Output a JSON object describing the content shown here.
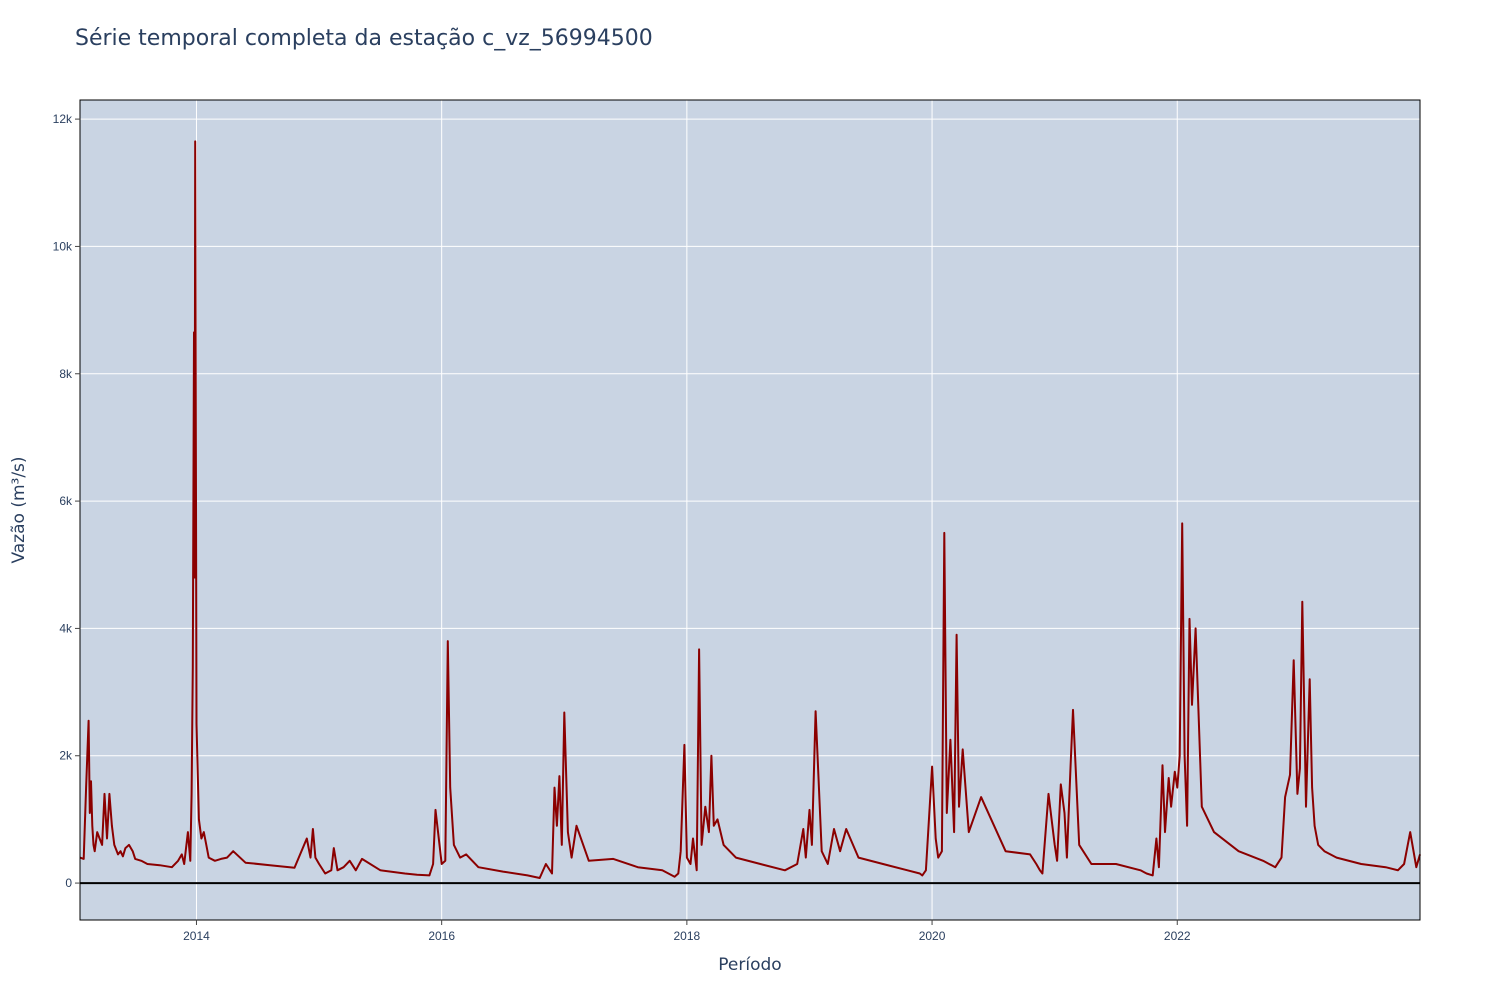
{
  "chart_data": {
    "type": "line",
    "title": "Série temporal completa da estação c_vz_56994500",
    "xlabel": "Período",
    "ylabel": "Vazão (m³/s)",
    "xlim": [
      2013.05,
      2023.98
    ],
    "ylim": [
      -580,
      12300
    ],
    "x_ticks": [
      {
        "value": 2014,
        "label": "2014"
      },
      {
        "value": 2016,
        "label": "2016"
      },
      {
        "value": 2018,
        "label": "2018"
      },
      {
        "value": 2020,
        "label": "2020"
      },
      {
        "value": 2022,
        "label": "2022"
      }
    ],
    "y_ticks": [
      {
        "value": 0,
        "label": "0"
      },
      {
        "value": 2000,
        "label": "2k"
      },
      {
        "value": 4000,
        "label": "4k"
      },
      {
        "value": 6000,
        "label": "6k"
      },
      {
        "value": 8000,
        "label": "8k"
      },
      {
        "value": 10000,
        "label": "10k"
      },
      {
        "value": 12000,
        "label": "12k"
      }
    ],
    "grid": true,
    "zero_line": true,
    "colors": {
      "plot_bg": "#c9d4e3",
      "grid": "#ffffff",
      "line": "#8b0000",
      "zero_line": "#000000"
    },
    "series": [
      {
        "x": [
          2013.05,
          2013.08,
          2013.1,
          2013.12,
          2013.13,
          2013.14,
          2013.15,
          2013.16,
          2013.17,
          2013.19,
          2013.21,
          2013.23,
          2013.25,
          2013.27,
          2013.29,
          2013.31,
          2013.33,
          2013.35,
          2013.36,
          2013.38,
          2013.4,
          2013.42,
          2013.45,
          2013.48,
          2013.5,
          2013.55,
          2013.6,
          2013.7,
          2013.8,
          2013.85,
          2013.88,
          2013.9,
          2013.93,
          2013.95,
          2013.96,
          2013.97,
          2013.98,
          2013.985,
          2013.99,
          2014.0,
          2014.02,
          2014.04,
          2014.06,
          2014.08,
          2014.1,
          2014.15,
          2014.2,
          2014.25,
          2014.3,
          2014.4,
          2014.6,
          2014.8,
          2014.9,
          2014.93,
          2014.95,
          2014.97,
          2015.0,
          2015.05,
          2015.1,
          2015.12,
          2015.15,
          2015.2,
          2015.25,
          2015.3,
          2015.35,
          2015.5,
          2015.7,
          2015.8,
          2015.9,
          2015.93,
          2015.95,
          2016.0,
          2016.03,
          2016.05,
          2016.07,
          2016.1,
          2016.15,
          2016.2,
          2016.3,
          2016.5,
          2016.7,
          2016.8,
          2016.85,
          2016.9,
          2016.92,
          2016.94,
          2016.96,
          2016.98,
          2017.0,
          2017.03,
          2017.06,
          2017.1,
          2017.2,
          2017.4,
          2017.6,
          2017.8,
          2017.9,
          2017.93,
          2017.95,
          2017.98,
          2018.0,
          2018.03,
          2018.05,
          2018.08,
          2018.1,
          2018.12,
          2018.15,
          2018.18,
          2018.2,
          2018.22,
          2018.25,
          2018.3,
          2018.4,
          2018.6,
          2018.8,
          2018.9,
          2018.95,
          2018.97,
          2019.0,
          2019.02,
          2019.05,
          2019.1,
          2019.15,
          2019.2,
          2019.25,
          2019.3,
          2019.4,
          2019.6,
          2019.8,
          2019.9,
          2019.92,
          2019.95,
          2020.0,
          2020.03,
          2020.05,
          2020.08,
          2020.1,
          2020.12,
          2020.15,
          2020.18,
          2020.2,
          2020.22,
          2020.25,
          2020.3,
          2020.4,
          2020.6,
          2020.8,
          2020.85,
          2020.88,
          2020.9,
          2020.95,
          2021.0,
          2021.02,
          2021.05,
          2021.08,
          2021.1,
          2021.13,
          2021.15,
          2021.2,
          2021.3,
          2021.5,
          2021.7,
          2021.75,
          2021.8,
          2021.83,
          2021.85,
          2021.88,
          2021.9,
          2021.93,
          2021.95,
          2021.98,
          2022.0,
          2022.02,
          2022.04,
          2022.06,
          2022.08,
          2022.1,
          2022.12,
          2022.15,
          2022.2,
          2022.3,
          2022.5,
          2022.7,
          2022.8,
          2022.85,
          2022.88,
          2022.92,
          2022.95,
          2022.98,
          2023.0,
          2023.02,
          2023.05,
          2023.08,
          2023.1,
          2023.12,
          2023.15,
          2023.2,
          2023.3,
          2023.5,
          2023.7,
          2023.8,
          2023.85,
          2023.9,
          2023.95,
          2023.98
        ],
        "y": [
          400,
          380,
          1500,
          2550,
          1100,
          1600,
          900,
          600,
          500,
          800,
          700,
          600,
          1400,
          700,
          1400,
          900,
          600,
          500,
          450,
          500,
          420,
          550,
          600,
          500,
          380,
          350,
          300,
          280,
          250,
          350,
          450,
          300,
          800,
          350,
          1400,
          3400,
          8650,
          4800,
          11650,
          2500,
          1000,
          700,
          800,
          600,
          400,
          350,
          380,
          400,
          500,
          320,
          280,
          240,
          700,
          400,
          850,
          400,
          300,
          150,
          200,
          550,
          200,
          250,
          350,
          200,
          380,
          200,
          150,
          130,
          120,
          300,
          1150,
          300,
          350,
          3800,
          1500,
          600,
          400,
          450,
          250,
          180,
          120,
          80,
          300,
          150,
          1500,
          900,
          1680,
          600,
          2680,
          800,
          400,
          900,
          350,
          380,
          250,
          200,
          100,
          150,
          500,
          2170,
          400,
          300,
          700,
          200,
          3670,
          600,
          1200,
          800,
          2000,
          900,
          1000,
          600,
          400,
          300,
          200,
          300,
          850,
          400,
          1150,
          600,
          2700,
          500,
          300,
          850,
          500,
          850,
          400,
          300,
          200,
          150,
          120,
          200,
          1830,
          700,
          400,
          500,
          5500,
          1100,
          2250,
          800,
          3900,
          1200,
          2100,
          800,
          1350,
          500,
          450,
          300,
          200,
          150,
          1400,
          600,
          350,
          1550,
          1100,
          400,
          1850,
          2720,
          600,
          300,
          300,
          200,
          150,
          120,
          700,
          250,
          1850,
          800,
          1650,
          1200,
          1750,
          1500,
          2000,
          5650,
          2000,
          900,
          4150,
          2800,
          4000,
          1200,
          800,
          500,
          350,
          250,
          400,
          1350,
          1700,
          3500,
          1400,
          1800,
          4420,
          1200,
          3200,
          1500,
          900,
          600,
          500,
          400,
          300,
          250,
          200,
          300,
          800,
          250,
          450
        ]
      }
    ]
  }
}
